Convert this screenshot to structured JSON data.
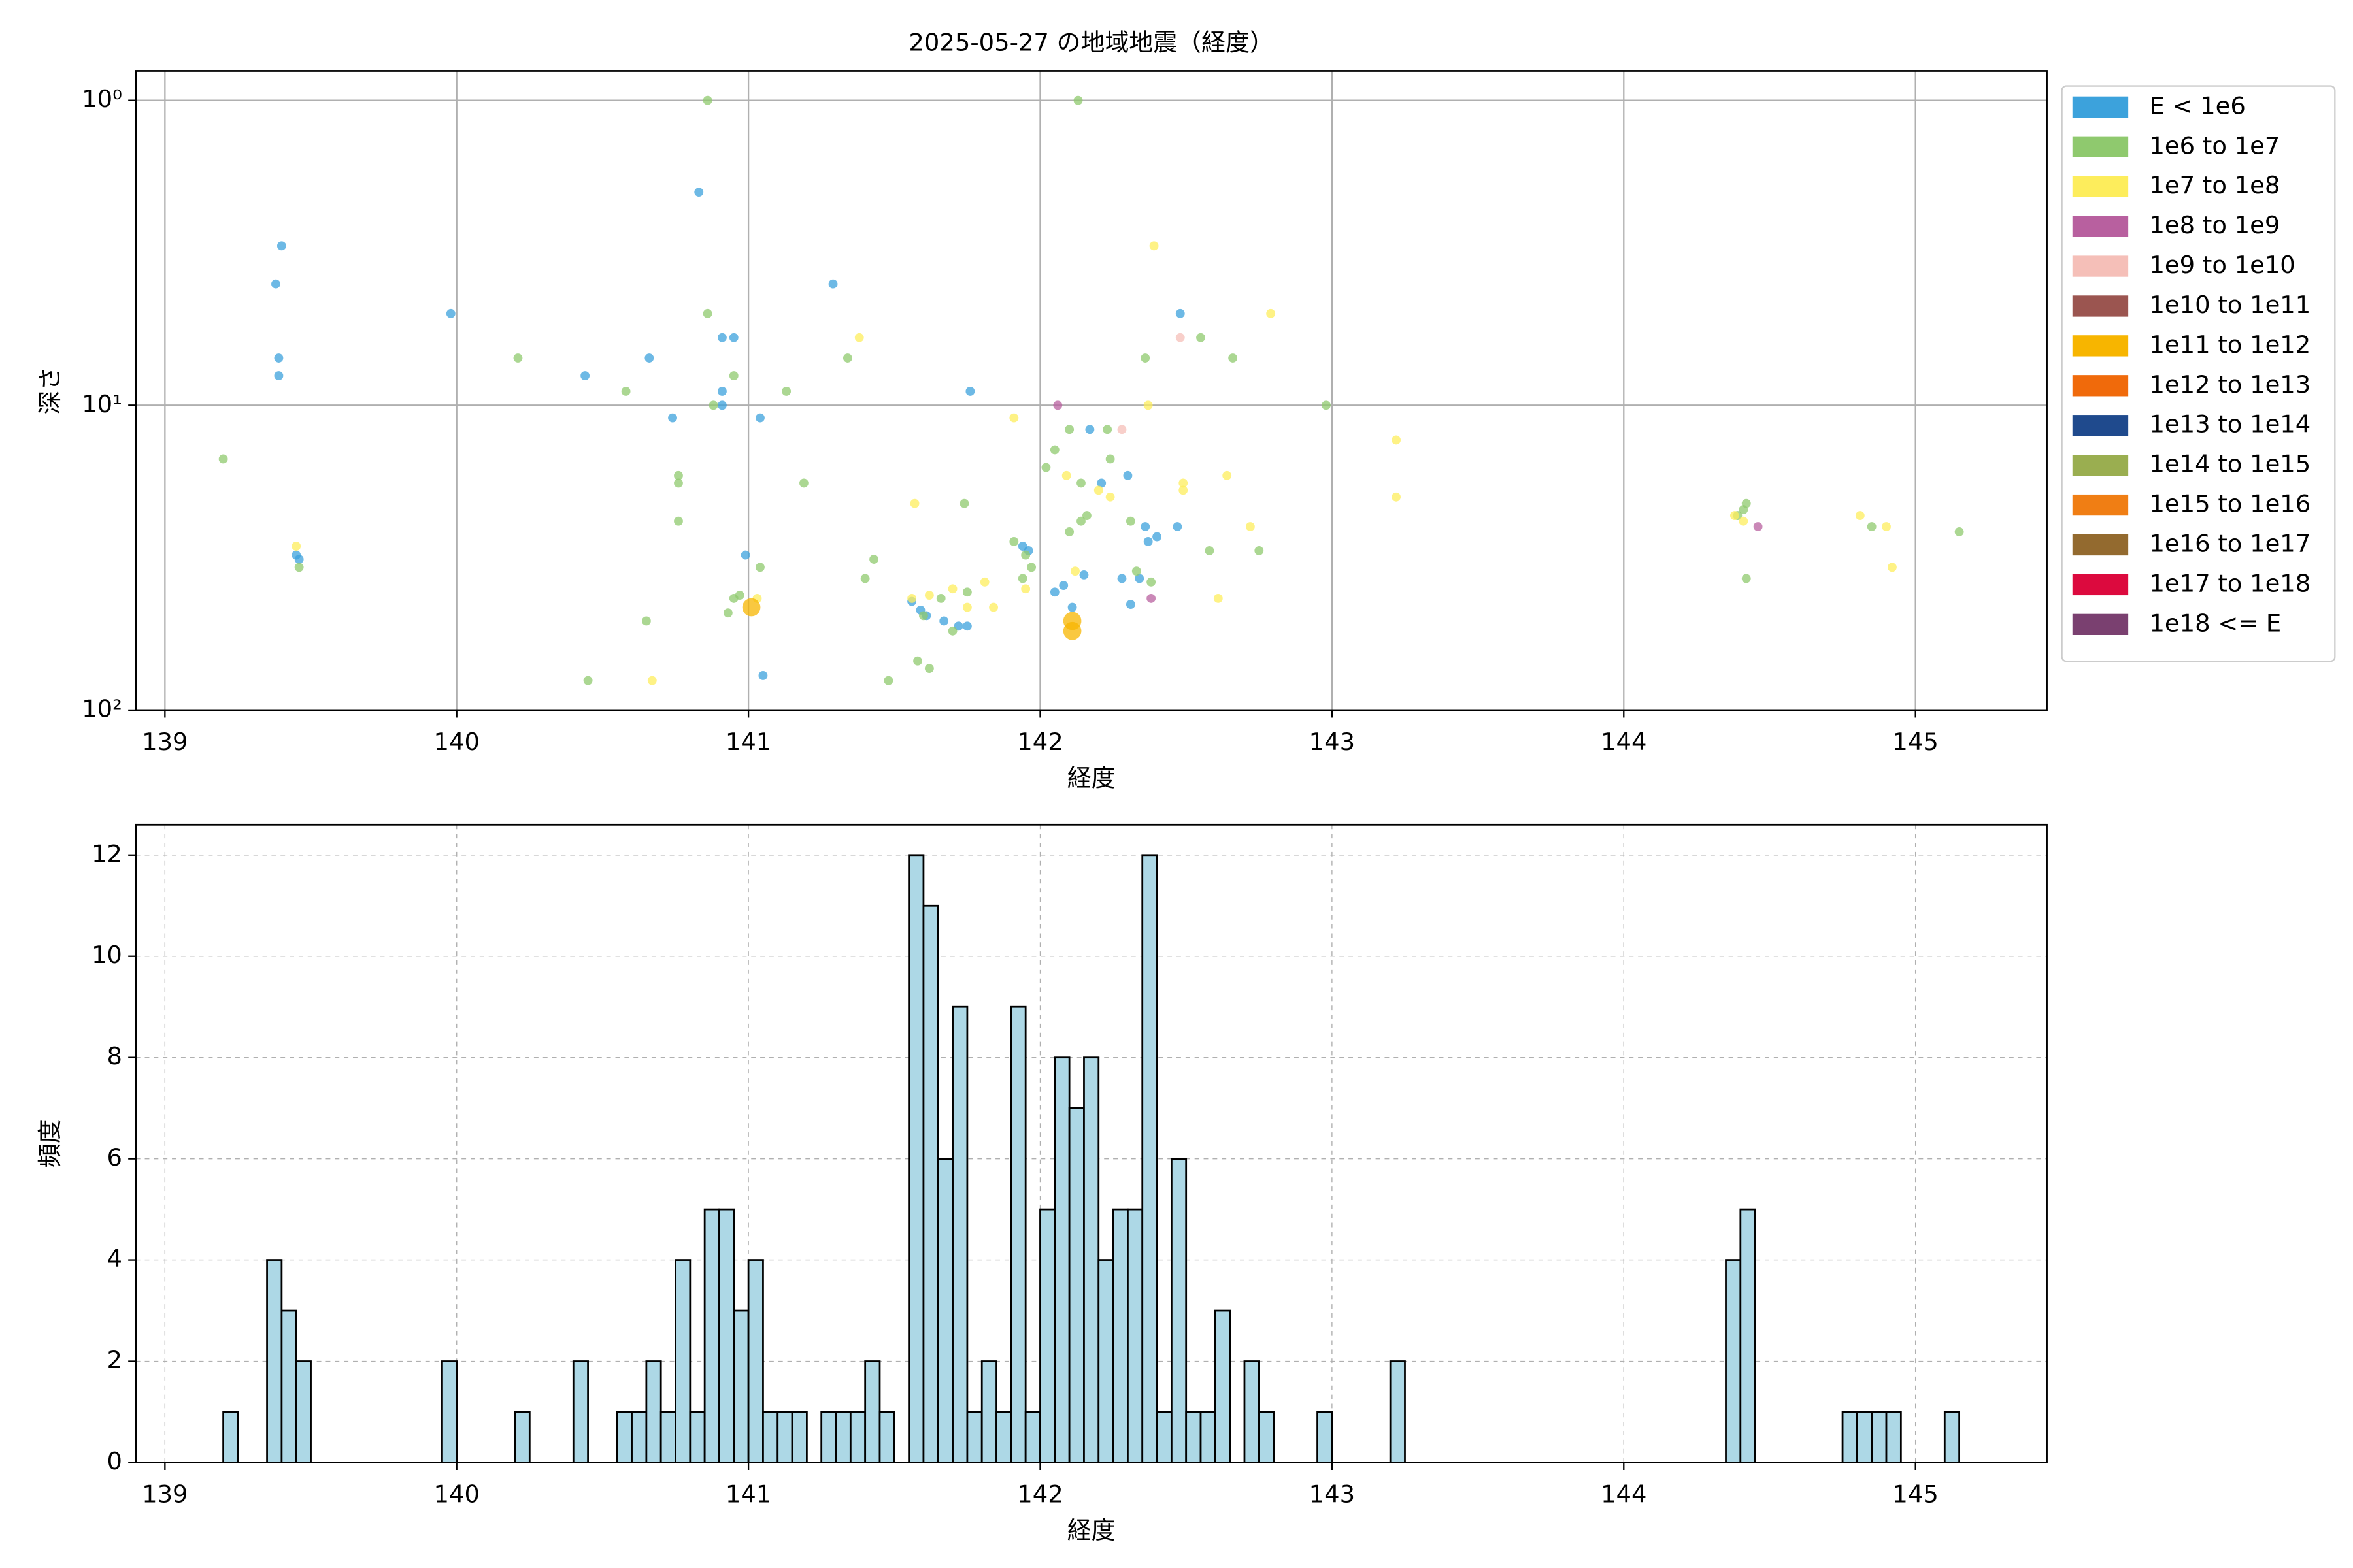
{
  "chart_data": [
    {
      "type": "scatter",
      "title": "2025-05-27 の地域地震（経度）",
      "x_label": "経度",
      "y_label": "深さ",
      "xlim": [
        138.9,
        145.45
      ],
      "xticks": [
        139,
        140,
        141,
        142,
        143,
        144,
        145
      ],
      "ylim": [
        0.8,
        100
      ],
      "yscale": "log",
      "y_inverted": true,
      "yticks": [
        {
          "value": 1,
          "label": "10⁰"
        },
        {
          "value": 10,
          "label": "10¹"
        },
        {
          "value": 100,
          "label": "10²"
        }
      ],
      "grid": true,
      "grid_style": "solid",
      "legend": "outside upper right",
      "series": [
        {
          "name": "E < 1e6",
          "color": "#3ca2dc",
          "x": [
            139.38,
            139.4,
            139.39,
            139.39,
            139.45,
            139.46,
            139.98,
            140.44,
            140.66,
            140.74,
            140.83,
            140.91,
            140.95,
            140.91,
            140.91,
            141.04,
            140.99,
            141.05,
            141.29,
            141.76,
            141.56,
            141.59,
            141.61,
            141.67,
            141.72,
            141.75,
            141.94,
            141.96,
            142.05,
            142.08,
            142.11,
            142.15,
            142.17,
            142.21,
            142.28,
            142.3,
            142.34,
            142.31,
            142.36,
            142.37,
            142.4,
            142.48,
            142.47
          ],
          "values": [
            4,
            3,
            7,
            8,
            31,
            32,
            5,
            8,
            7,
            11,
            2,
            6,
            6,
            9,
            10,
            11,
            31,
            77,
            4,
            9,
            44,
            47,
            49,
            51,
            53,
            53,
            29,
            30,
            41,
            39,
            46,
            36,
            12,
            18,
            37,
            17,
            37,
            45,
            25,
            28,
            27,
            5,
            25
          ]
        },
        {
          "name": "1e6 to 1e7",
          "color": "#8fc96e",
          "x": [
            139.2,
            139.46,
            140.21,
            140.58,
            140.65,
            140.45,
            140.76,
            140.76,
            140.76,
            140.86,
            140.86,
            140.95,
            140.88,
            140.95,
            140.93,
            140.97,
            141.04,
            141.13,
            141.19,
            141.34,
            141.4,
            141.43,
            141.48,
            141.58,
            141.62,
            141.74,
            141.6,
            141.66,
            141.7,
            141.75,
            141.91,
            141.94,
            141.97,
            141.95,
            142.02,
            142.05,
            142.1,
            142.1,
            142.14,
            142.14,
            142.16,
            142.13,
            142.24,
            142.23,
            142.31,
            142.33,
            142.38,
            142.36,
            142.55,
            142.58,
            142.66,
            142.75,
            142.98,
            144.39,
            144.41,
            144.42,
            144.42,
            144.85,
            145.15
          ],
          "values": [
            15,
            34,
            7,
            9,
            51,
            80,
            17,
            18,
            24,
            1,
            5,
            8,
            10,
            43,
            48,
            42,
            34,
            9,
            18,
            7,
            37,
            32,
            80,
            69,
            73,
            21,
            49,
            43,
            55,
            41,
            28,
            37,
            34,
            31,
            16,
            14,
            12,
            26,
            18,
            24,
            23,
            1,
            15,
            12,
            24,
            35,
            38,
            7,
            6,
            30,
            7,
            30,
            10,
            23,
            22,
            21,
            37,
            25,
            26
          ]
        },
        {
          "name": "1e7 to 1e8",
          "color": "#fded5c",
          "x": [
            139.45,
            140.67,
            141.03,
            141.38,
            141.57,
            141.56,
            141.62,
            141.7,
            141.75,
            141.81,
            141.84,
            141.91,
            141.95,
            142.09,
            142.12,
            142.2,
            142.24,
            142.37,
            142.39,
            142.49,
            142.49,
            142.61,
            142.64,
            142.72,
            142.79,
            143.22,
            143.22,
            144.38,
            144.41,
            144.81,
            144.9,
            144.92
          ],
          "values": [
            29,
            80,
            43,
            6,
            21,
            43,
            42,
            40,
            46,
            38,
            46,
            11,
            40,
            17,
            35,
            19,
            20,
            10,
            3,
            18,
            19,
            43,
            17,
            25,
            5,
            13,
            20,
            23,
            24,
            23,
            25,
            34
          ]
        },
        {
          "name": "1e8 to 1e9",
          "color": "#b8609f",
          "x": [
            142.06,
            142.38,
            144.46
          ],
          "values": [
            10,
            43,
            25
          ]
        },
        {
          "name": "1e9 to 1e10",
          "color": "#f5bfb8",
          "x": [
            142.48,
            142.28
          ],
          "values": [
            6,
            12
          ]
        },
        {
          "name": "1e10 to 1e11",
          "color": "#9b5550",
          "x": [],
          "values": []
        },
        {
          "name": "1e11 to 1e12",
          "color": "#f7b500",
          "x": [
            141.01,
            142.11,
            142.11
          ],
          "values": [
            46,
            55,
            51
          ]
        },
        {
          "name": "1e12 to 1e13",
          "color": "#f06a0b",
          "x": [],
          "values": []
        },
        {
          "name": "1e13 to 1e14",
          "color": "#1f4a8d",
          "x": [],
          "values": []
        },
        {
          "name": "1e14 to 1e15",
          "color": "#9aae50",
          "x": [],
          "values": []
        },
        {
          "name": "1e15 to 1e16",
          "color": "#f07e14",
          "x": [],
          "values": []
        },
        {
          "name": "1e16 to 1e17",
          "color": "#936a2f",
          "x": [],
          "values": []
        },
        {
          "name": "1e17 to 1e18",
          "color": "#dc0a3e",
          "x": [],
          "values": []
        },
        {
          "name": "1e18 <= E",
          "color": "#7a4070",
          "x": [],
          "values": []
        }
      ]
    },
    {
      "type": "histogram",
      "x_label": "経度",
      "y_label": "頻度",
      "color": "#add8e6",
      "edgecolor": "#000000",
      "xlim": [
        138.9,
        145.45
      ],
      "xticks": [
        139,
        140,
        141,
        142,
        143,
        144,
        145
      ],
      "ylim": [
        0,
        12.6
      ],
      "yticks": [
        0,
        2,
        4,
        6,
        8,
        10,
        12
      ],
      "grid": true,
      "grid_style": "dashed",
      "bins": [
        139.2,
        139.25,
        139.3,
        139.35,
        139.4,
        139.45,
        139.5,
        139.55,
        139.6,
        139.65,
        139.7,
        139.75,
        139.8,
        139.85,
        139.9,
        139.95,
        140,
        140.05,
        140.1,
        140.15,
        140.2,
        140.25,
        140.3,
        140.35,
        140.4,
        140.45,
        140.5,
        140.55,
        140.6,
        140.65,
        140.7,
        140.75,
        140.8,
        140.85,
        140.9,
        140.95,
        141,
        141.05,
        141.1,
        141.15,
        141.2,
        141.25,
        141.3,
        141.35,
        141.4,
        141.45,
        141.5,
        141.55,
        141.6,
        141.65,
        141.7,
        141.75,
        141.8,
        141.85,
        141.9,
        141.95,
        142,
        142.05,
        142.1,
        142.15,
        142.2,
        142.25,
        142.3,
        142.35,
        142.4,
        142.45,
        142.5,
        142.55,
        142.6,
        142.65,
        142.7,
        142.75,
        142.8,
        142.85,
        142.9,
        142.95,
        143,
        143.05,
        143.1,
        143.15,
        143.2,
        143.25,
        143.3,
        143.35,
        143.4,
        143.45,
        143.5,
        143.55,
        143.6,
        143.65,
        143.7,
        143.75,
        143.8,
        143.85,
        143.9,
        143.95,
        144,
        144.05,
        144.1,
        144.15,
        144.2,
        144.25,
        144.3,
        144.35,
        144.4,
        144.45,
        144.5,
        144.55,
        144.6,
        144.65,
        144.7,
        144.75,
        144.8,
        144.85,
        144.9,
        144.95,
        145,
        145.05,
        145.1,
        145.15
      ],
      "values": [
        1,
        0,
        0,
        4,
        3,
        2,
        0,
        0,
        0,
        0,
        0,
        0,
        0,
        0,
        0,
        2,
        0,
        0,
        0,
        0,
        1,
        0,
        0,
        0,
        2,
        0,
        0,
        1,
        1,
        2,
        1,
        4,
        1,
        5,
        5,
        3,
        4,
        1,
        1,
        1,
        0,
        1,
        1,
        1,
        2,
        1,
        0,
        12,
        11,
        6,
        9,
        1,
        2,
        1,
        9,
        1,
        5,
        8,
        7,
        8,
        4,
        5,
        5,
        12,
        1,
        6,
        1,
        1,
        3,
        0,
        2,
        1,
        0,
        0,
        0,
        1,
        0,
        0,
        0,
        0,
        2,
        0,
        0,
        0,
        0,
        0,
        0,
        0,
        0,
        0,
        0,
        0,
        0,
        0,
        0,
        0,
        0,
        0,
        0,
        0,
        0,
        0,
        0,
        4,
        5,
        0,
        0,
        0,
        0,
        0,
        0,
        1,
        1,
        1,
        1,
        0,
        0,
        0,
        1
      ]
    }
  ]
}
